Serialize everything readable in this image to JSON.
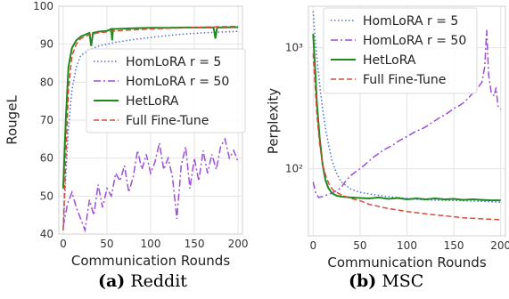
{
  "figure": {
    "caption_a": {
      "tag": "(a)",
      "text": "Reddit"
    },
    "caption_b": {
      "tag": "(b)",
      "text": "MSC"
    }
  },
  "chart_data": [
    {
      "type": "line",
      "panel": "a",
      "xlabel": "Communication Rounds",
      "ylabel": "RougeL",
      "xlim": [
        -5,
        205
      ],
      "ylim": [
        40,
        100
      ],
      "xticks": [
        0,
        50,
        100,
        150,
        200
      ],
      "yticks": [
        40,
        50,
        60,
        70,
        80,
        90,
        100
      ],
      "yscale": "linear",
      "grid": true,
      "legend": "center-right",
      "series": [
        {
          "name": "HomLoRA r = 5",
          "color": "#4a6fd6",
          "style": "dotted",
          "points": [
            [
              0,
              41
            ],
            [
              3,
              55
            ],
            [
              6,
              68
            ],
            [
              10,
              78
            ],
            [
              15,
              84
            ],
            [
              20,
              87
            ],
            [
              30,
              88.5
            ],
            [
              40,
              89.5
            ],
            [
              60,
              90.5
            ],
            [
              80,
              91.2
            ],
            [
              100,
              91.8
            ],
            [
              120,
              92.3
            ],
            [
              140,
              92.7
            ],
            [
              160,
              93.0
            ],
            [
              180,
              93.2
            ],
            [
              200,
              93.4
            ]
          ]
        },
        {
          "name": "HomLoRA r = 50",
          "color": "#9a4fd6",
          "style": "dashdot",
          "points": [
            [
              0,
              42
            ],
            [
              5,
              48
            ],
            [
              10,
              51
            ],
            [
              15,
              47
            ],
            [
              20,
              44
            ],
            [
              25,
              41
            ],
            [
              30,
              49
            ],
            [
              35,
              45
            ],
            [
              40,
              53
            ],
            [
              45,
              47
            ],
            [
              50,
              52
            ],
            [
              55,
              50
            ],
            [
              60,
              56
            ],
            [
              65,
              54
            ],
            [
              70,
              58
            ],
            [
              75,
              51
            ],
            [
              80,
              55
            ],
            [
              85,
              62
            ],
            [
              90,
              57
            ],
            [
              95,
              61
            ],
            [
              100,
              56
            ],
            [
              105,
              59
            ],
            [
              110,
              64
            ],
            [
              115,
              57
            ],
            [
              120,
              60
            ],
            [
              125,
              55
            ],
            [
              130,
              44
            ],
            [
              135,
              58
            ],
            [
              140,
              63
            ],
            [
              145,
              52
            ],
            [
              150,
              60
            ],
            [
              155,
              54
            ],
            [
              160,
              62
            ],
            [
              165,
              56
            ],
            [
              170,
              61
            ],
            [
              175,
              57
            ],
            [
              180,
              63
            ],
            [
              185,
              65
            ],
            [
              190,
              60
            ],
            [
              195,
              62
            ],
            [
              200,
              59
            ]
          ]
        },
        {
          "name": "HetLoRA",
          "color": "#1e8a1e",
          "style": "solid",
          "points": [
            [
              0,
              52
            ],
            [
              3,
              70
            ],
            [
              6,
              84
            ],
            [
              10,
              89
            ],
            [
              15,
              91
            ],
            [
              20,
              92
            ],
            [
              25,
              92.5
            ],
            [
              30,
              93
            ],
            [
              32,
              89.5
            ],
            [
              34,
              93
            ],
            [
              40,
              93.3
            ],
            [
              50,
              93.5
            ],
            [
              55,
              94
            ],
            [
              56,
              91
            ],
            [
              57,
              94
            ],
            [
              80,
              94.2
            ],
            [
              100,
              94.3
            ],
            [
              120,
              94.3
            ],
            [
              140,
              94.4
            ],
            [
              160,
              94.4
            ],
            [
              172,
              94.4
            ],
            [
              174,
              91.5
            ],
            [
              176,
              94.4
            ],
            [
              200,
              94.5
            ]
          ]
        },
        {
          "name": "Full Fine-Tune",
          "color": "#d94a3d",
          "style": "dashed",
          "points": [
            [
              0,
              41
            ],
            [
              3,
              60
            ],
            [
              6,
              78
            ],
            [
              10,
              87
            ],
            [
              15,
              90
            ],
            [
              20,
              91.5
            ],
            [
              30,
              92.5
            ],
            [
              40,
              93
            ],
            [
              60,
              93.5
            ],
            [
              80,
              93.8
            ],
            [
              100,
              94
            ],
            [
              120,
              94.2
            ],
            [
              140,
              94.3
            ],
            [
              160,
              94.5
            ],
            [
              180,
              94.6
            ],
            [
              200,
              94.7
            ]
          ]
        }
      ]
    },
    {
      "type": "line",
      "panel": "b",
      "xlabel": "Communication Rounds",
      "ylabel": "Perplexity",
      "xlim": [
        -5,
        205
      ],
      "ylim": [
        28,
        2200
      ],
      "xticks": [
        0,
        50,
        100,
        150,
        200
      ],
      "yticks": [
        100,
        1000
      ],
      "ytick_labels": [
        "10²",
        "10³"
      ],
      "yscale": "log",
      "grid": true,
      "legend": "top-center",
      "series": [
        {
          "name": "HomLoRA r = 5",
          "color": "#4a6fd6",
          "style": "dotted",
          "points": [
            [
              0,
              2000
            ],
            [
              2,
              1200
            ],
            [
              5,
              700
            ],
            [
              8,
              420
            ],
            [
              11,
              280
            ],
            [
              14,
              200
            ],
            [
              17,
              150
            ],
            [
              20,
              118
            ],
            [
              25,
              92
            ],
            [
              30,
              78
            ],
            [
              40,
              68
            ],
            [
              50,
              64
            ],
            [
              60,
              62
            ],
            [
              80,
              59
            ],
            [
              100,
              57
            ],
            [
              120,
              55.5
            ],
            [
              140,
              55
            ],
            [
              160,
              54.5
            ],
            [
              180,
              54
            ],
            [
              200,
              53
            ]
          ]
        },
        {
          "name": "HomLoRA r = 50",
          "color": "#9a4fd6",
          "style": "dashdot",
          "points": [
            [
              0,
              78
            ],
            [
              3,
              62
            ],
            [
              6,
              58
            ],
            [
              10,
              59
            ],
            [
              15,
              61
            ],
            [
              20,
              63
            ],
            [
              25,
              66
            ],
            [
              30,
              70
            ],
            [
              35,
              80
            ],
            [
              40,
              88
            ],
            [
              45,
              94
            ],
            [
              50,
              100
            ],
            [
              55,
              108
            ],
            [
              60,
              117
            ],
            [
              65,
              126
            ],
            [
              70,
              134
            ],
            [
              75,
              143
            ],
            [
              80,
              150
            ],
            [
              85,
              157
            ],
            [
              90,
              168
            ],
            [
              95,
              176
            ],
            [
              100,
              185
            ],
            [
              105,
              195
            ],
            [
              110,
              205
            ],
            [
              115,
              212
            ],
            [
              120,
              222
            ],
            [
              125,
              236
            ],
            [
              130,
              250
            ],
            [
              135,
              265
            ],
            [
              140,
              278
            ],
            [
              145,
              295
            ],
            [
              150,
              315
            ],
            [
              155,
              330
            ],
            [
              160,
              350
            ],
            [
              165,
              380
            ],
            [
              170,
              420
            ],
            [
              175,
              460
            ],
            [
              180,
              520
            ],
            [
              183,
              700
            ],
            [
              185,
              1400
            ],
            [
              187,
              600
            ],
            [
              190,
              420
            ],
            [
              193,
              400
            ],
            [
              195,
              470
            ],
            [
              197,
              330
            ],
            [
              200,
              310
            ]
          ]
        },
        {
          "name": "HetLoRA",
          "color": "#1e8a1e",
          "style": "solid",
          "points": [
            [
              0,
              1300
            ],
            [
              2,
              700
            ],
            [
              4,
              350
            ],
            [
              7,
              180
            ],
            [
              10,
              110
            ],
            [
              13,
              82
            ],
            [
              16,
              70
            ],
            [
              20,
              63
            ],
            [
              25,
              60
            ],
            [
              30,
              59
            ],
            [
              40,
              58
            ],
            [
              50,
              57.5
            ],
            [
              60,
              57
            ],
            [
              70,
              58
            ],
            [
              80,
              56.5
            ],
            [
              90,
              57.5
            ],
            [
              100,
              56
            ],
            [
              110,
              57
            ],
            [
              120,
              56
            ],
            [
              130,
              57
            ],
            [
              140,
              56
            ],
            [
              150,
              56.5
            ],
            [
              160,
              55.5
            ],
            [
              170,
              56
            ],
            [
              180,
              55.5
            ],
            [
              190,
              55
            ],
            [
              200,
              55
            ]
          ]
        },
        {
          "name": "Full Fine-Tune",
          "color": "#d94a3d",
          "style": "dashed",
          "points": [
            [
              0,
              900
            ],
            [
              2,
              500
            ],
            [
              4,
              280
            ],
            [
              7,
              160
            ],
            [
              10,
              110
            ],
            [
              14,
              85
            ],
            [
              18,
              72
            ],
            [
              22,
              66
            ],
            [
              30,
              61
            ],
            [
              40,
              57
            ],
            [
              50,
              54.5
            ],
            [
              60,
              51
            ],
            [
              80,
              47
            ],
            [
              100,
              44.5
            ],
            [
              120,
              42.5
            ],
            [
              140,
              41
            ],
            [
              160,
              39.5
            ],
            [
              180,
              38.7
            ],
            [
              200,
              38
            ]
          ]
        }
      ]
    }
  ]
}
